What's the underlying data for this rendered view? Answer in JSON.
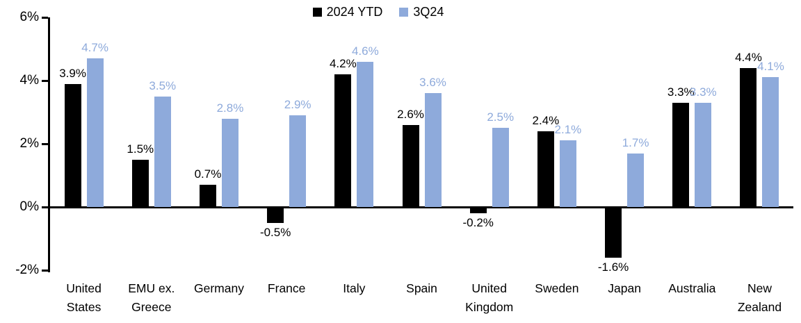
{
  "chart_data": {
    "type": "bar",
    "title": "",
    "categories": [
      "United\nStates",
      "EMU ex.\nGreece",
      "Germany",
      "France",
      "Italy",
      "Spain",
      "United\nKingdom",
      "Sweden",
      "Japan",
      "Australia",
      "New\nZealand"
    ],
    "series": [
      {
        "name": "2024 YTD",
        "color": "#000000",
        "values": [
          3.9,
          1.5,
          0.7,
          -0.5,
          4.2,
          2.6,
          -0.2,
          2.4,
          -1.6,
          3.3,
          4.4
        ],
        "labels": [
          "3.9%",
          "1.5%",
          "0.7%",
          "-0.5%",
          "4.2%",
          "2.6%",
          "-0.2%",
          "2.4%",
          "-1.6%",
          "3.3%",
          "4.4%"
        ]
      },
      {
        "name": "3Q24",
        "color": "#8EAADB",
        "values": [
          4.7,
          3.5,
          2.8,
          2.9,
          4.6,
          3.6,
          2.5,
          2.1,
          1.7,
          3.3,
          4.1
        ],
        "labels": [
          "4.7%",
          "3.5%",
          "2.8%",
          "2.9%",
          "4.6%",
          "3.6%",
          "2.5%",
          "2.1%",
          "1.7%",
          "3.3%",
          "4.1%"
        ]
      }
    ],
    "y_axis": {
      "min": -2,
      "max": 6,
      "tick_step": 2,
      "tick_labels": [
        "6%",
        "4%",
        "2%",
        "0%",
        "-2%"
      ]
    },
    "legend_position": "top-center",
    "grid": false,
    "axis_color": "#000000"
  }
}
